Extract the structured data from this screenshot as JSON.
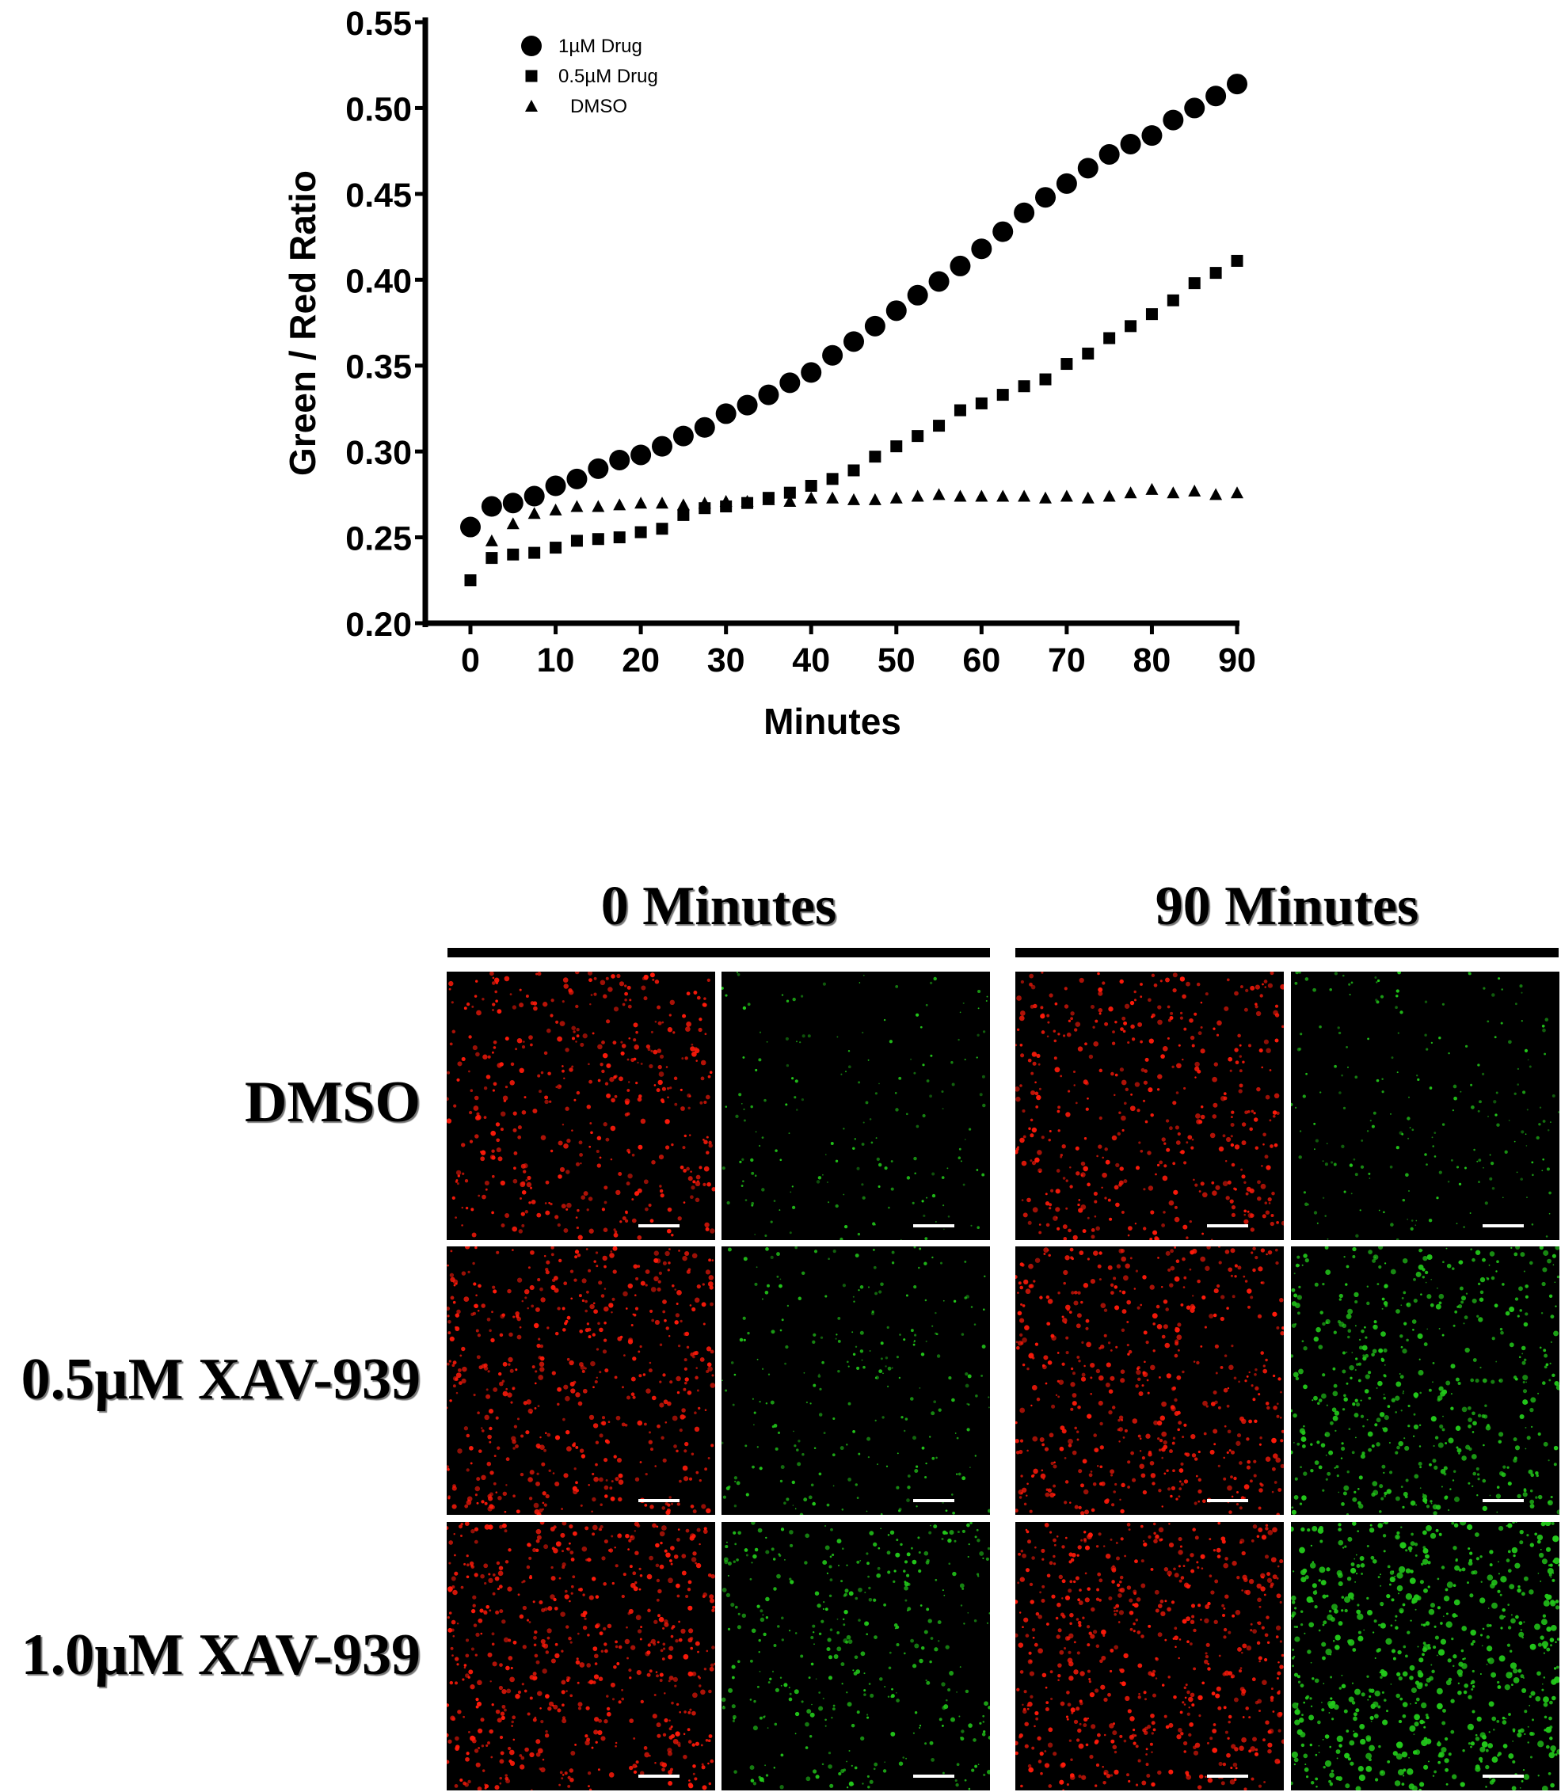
{
  "chart_data": {
    "type": "scatter",
    "ylabel": "Green / Red Ratio",
    "xlabel": "Minutes",
    "xlim": [
      0,
      90
    ],
    "ylim": [
      0.2,
      0.55
    ],
    "xticks": [
      "0",
      "10",
      "20",
      "30",
      "40",
      "50",
      "60",
      "70",
      "80",
      "90"
    ],
    "yticks": [
      "0.20",
      "0.25",
      "0.30",
      "0.35",
      "0.40",
      "0.45",
      "0.50",
      "0.55"
    ],
    "legend_position": "top-left",
    "grid": false,
    "x": [
      0,
      2.5,
      5,
      7.5,
      10,
      12.5,
      15,
      17.5,
      20,
      22.5,
      25,
      27.5,
      30,
      32.5,
      35,
      37.5,
      40,
      42.5,
      45,
      47.5,
      50,
      52.5,
      55,
      57.5,
      60,
      62.5,
      65,
      67.5,
      70,
      72.5,
      75,
      77.5,
      80,
      82.5,
      85,
      87.5,
      90
    ],
    "series": [
      {
        "name": "1µM Drug",
        "marker": "circle",
        "values": [
          0.256,
          0.268,
          0.27,
          0.274,
          0.28,
          0.284,
          0.29,
          0.295,
          0.298,
          0.303,
          0.309,
          0.314,
          0.322,
          0.327,
          0.333,
          0.34,
          0.346,
          0.356,
          0.364,
          0.373,
          0.382,
          0.391,
          0.399,
          0.408,
          0.418,
          0.428,
          0.439,
          0.448,
          0.456,
          0.465,
          0.473,
          0.479,
          0.484,
          0.493,
          0.5,
          0.507,
          0.514
        ]
      },
      {
        "name": "0.5µM Drug",
        "marker": "square",
        "values": [
          0.225,
          0.238,
          0.24,
          0.241,
          0.244,
          0.248,
          0.249,
          0.25,
          0.253,
          0.255,
          0.263,
          0.267,
          0.268,
          0.27,
          0.273,
          0.276,
          0.28,
          0.284,
          0.289,
          0.297,
          0.303,
          0.309,
          0.315,
          0.324,
          0.328,
          0.333,
          0.338,
          0.342,
          0.351,
          0.357,
          0.366,
          0.373,
          0.38,
          0.388,
          0.398,
          0.404,
          0.411
        ]
      },
      {
        "name": "DMSO",
        "marker": "triangle",
        "values": [
          null,
          0.248,
          0.258,
          0.264,
          0.266,
          0.268,
          0.268,
          0.269,
          0.27,
          0.27,
          0.269,
          0.27,
          0.271,
          0.271,
          0.272,
          0.271,
          0.273,
          0.273,
          0.272,
          0.272,
          0.273,
          0.274,
          0.275,
          0.274,
          0.274,
          0.274,
          0.274,
          0.273,
          0.274,
          0.273,
          0.274,
          0.276,
          0.278,
          0.276,
          0.277,
          0.275,
          0.276
        ]
      }
    ]
  },
  "colors": {
    "red_channel": "#ff1a0a",
    "green_channel": "#22c81a",
    "panel_background": "#000000",
    "scale_bar": "#ffffff"
  },
  "figure": {
    "columns": [
      {
        "label": "0 Minutes",
        "time_min": 0
      },
      {
        "label": "90 Minutes",
        "time_min": 90
      }
    ],
    "rows": [
      {
        "label": "DMSO",
        "green_intensity_0": 0.25,
        "green_intensity_90": 0.3,
        "red_density": 0.85
      },
      {
        "label": "0.5µM XAV-939",
        "green_intensity_0": 0.35,
        "green_intensity_90": 0.75,
        "red_density": 1.0
      },
      {
        "label": "1.0µM XAV-939",
        "green_intensity_0": 0.55,
        "green_intensity_90": 1.0,
        "red_density": 1.15
      }
    ],
    "channels": [
      "red",
      "green"
    ]
  }
}
